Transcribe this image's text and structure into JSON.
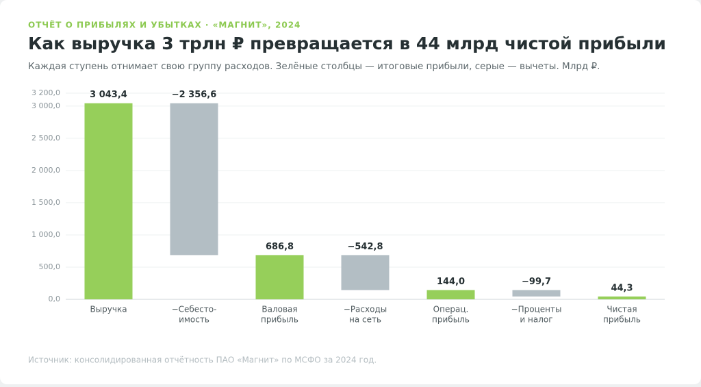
{
  "chart_data": {
    "type": "waterfall",
    "kicker": "ОТЧЁТ О ПРИБЫЛЯХ И УБЫТКАХ · «МАГНИТ», 2024",
    "title": "Как выручка 3 трлн ₽ превращается в 44 млрд чистой прибыли",
    "subtitle": "Каждая ступень отнимает свою группу расходов. Зелёные столбцы — итоговые прибыли, серые — вычеты. Млрд ₽.",
    "source": "Источник: консолидированная отчётность ПАО «Магнит» по МСФО за 2024 год.",
    "categories": [
      [
        "Выручка"
      ],
      [
        "−Себесто-",
        "имость"
      ],
      [
        "Валовая",
        "прибыль"
      ],
      [
        "−Расходы",
        "на сеть"
      ],
      [
        "Операц.",
        "прибыль"
      ],
      [
        "−Проценты",
        "и налог"
      ],
      [
        "Чистая",
        "прибыль"
      ]
    ],
    "values": [
      3043.4,
      -2356.6,
      686.8,
      -542.8,
      144.0,
      -99.7,
      44.3
    ],
    "value_labels": [
      "3 043,4",
      "−2 356,6",
      "686,8",
      "−542,8",
      "144,0",
      "−99,7",
      "44,3"
    ],
    "bar_kinds": [
      "total",
      "step",
      "total",
      "step",
      "total",
      "step",
      "total"
    ],
    "colors": {
      "total": "#96cf5a",
      "step": "#b3bec4"
    },
    "ylim": [
      0,
      3200
    ],
    "yticks": [
      {
        "value": 0,
        "label": "0,0"
      },
      {
        "value": 500,
        "label": "500,0"
      },
      {
        "value": 1000,
        "label": "1 000,0"
      },
      {
        "value": 1500,
        "label": "1 500,0"
      },
      {
        "value": 2000,
        "label": "2 000,0"
      },
      {
        "value": 2500,
        "label": "2 500,0"
      },
      {
        "value": 3000,
        "label": "3 000,0"
      },
      {
        "value": 3200,
        "label": "3 200,0"
      }
    ],
    "grid": true
  }
}
